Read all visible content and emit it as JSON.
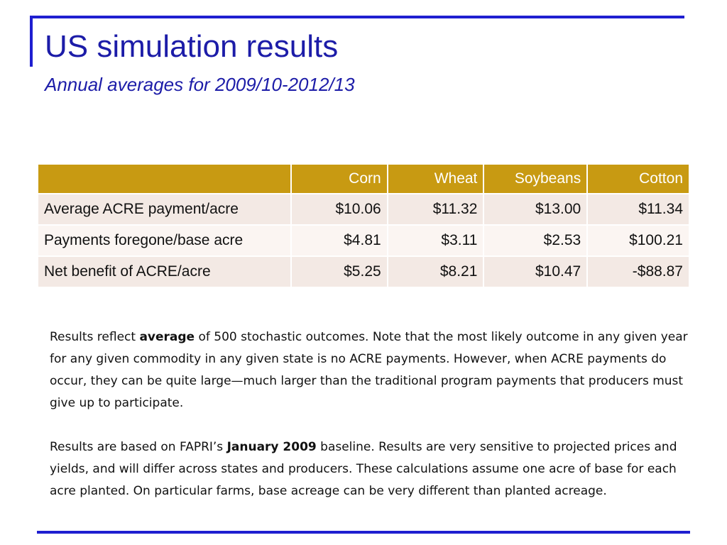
{
  "slide": {
    "title": "US simulation results",
    "subtitle": "Annual averages for 2009/10-2012/13"
  },
  "table": {
    "header_blank": "",
    "columns": [
      "Corn",
      "Wheat",
      "Soybeans",
      "Cotton"
    ],
    "rows": [
      {
        "label": "Average ACRE payment/acre",
        "values": [
          "$10.06",
          "$11.32",
          "$13.00",
          "$11.34"
        ]
      },
      {
        "label": "Payments foregone/base acre",
        "values": [
          "$4.81",
          "$3.11",
          "$2.53",
          "$100.21"
        ]
      },
      {
        "label": "Net benefit of ACRE/acre",
        "values": [
          "$5.25",
          "$8.21",
          "$10.47",
          "-$88.87"
        ]
      }
    ]
  },
  "notes": {
    "p1_before": "Results reflect ",
    "p1_bold": "average",
    "p1_after": " of 500 stochastic outcomes. Note that the most likely outcome in any given year for any given commodity in any given state is no ACRE payments. However, when ACRE payments do occur, they can be quite large—much larger than the traditional program payments that producers must give up to participate.",
    "p2_before": "Results are based on FAPRI’s ",
    "p2_bold": "January 2009",
    "p2_after": " baseline. Results are very sensitive to projected prices and yields, and will differ across states and producers. These calculations assume one acre of base for each acre planted. On particular farms, base acreage can be very different than planted acreage."
  },
  "colors": {
    "accent_blue": "#1f1fd0",
    "title_blue": "#1c1ca8",
    "header_gold": "#c89a12",
    "row_shade_dark": "#f3e9e4",
    "row_shade_light": "#fbf5f2"
  }
}
